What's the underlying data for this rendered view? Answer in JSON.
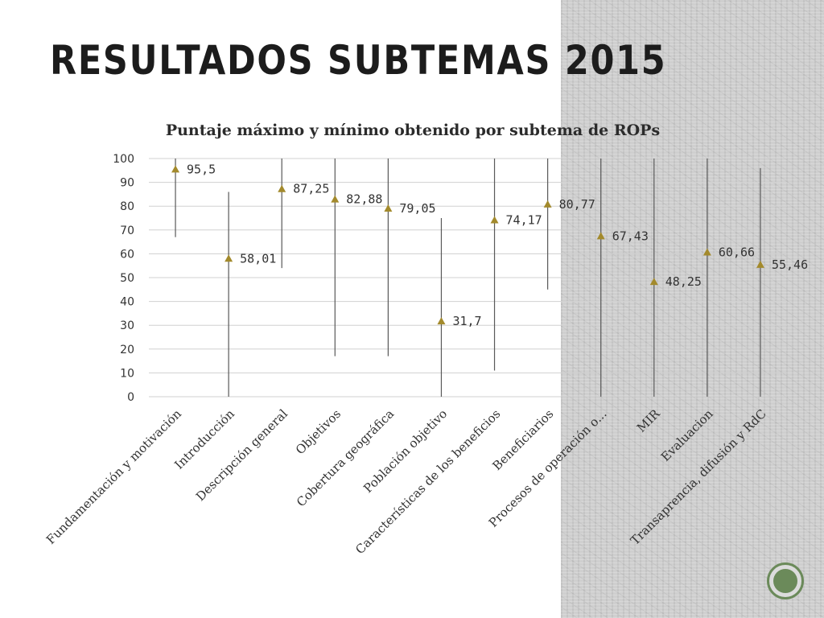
{
  "slide": {
    "title": "RESULTADOS SUBTEMAS 2015"
  },
  "colors": {
    "marker": "#a38a2c",
    "grid": "#d0d0d0",
    "line": "#595959",
    "nav_accent": "#6b8a5a"
  },
  "chart_data": {
    "type": "high-low with markers",
    "title": "Puntaje máximo y mínimo obtenido por subtema de ROPs",
    "ylim": [
      0,
      100
    ],
    "yticks": [
      0,
      10,
      20,
      30,
      40,
      50,
      60,
      70,
      80,
      90,
      100
    ],
    "grid": true,
    "categories": [
      "Fundamentación y motivación",
      "Introducción",
      "Descripción general",
      "Objetivos",
      "Cobertura geográfica",
      "Población objetivo",
      "Características de los beneficios",
      "Beneficiarios",
      "Procesos de operación o...",
      "MIR",
      "Evaluacion",
      "Transaprencia, difusión y RdC"
    ],
    "max": [
      100,
      86,
      100,
      100,
      100,
      75,
      100,
      100,
      100,
      100,
      100,
      96
    ],
    "min": [
      67,
      0,
      54,
      17,
      17,
      0,
      11,
      45,
      0,
      0,
      0,
      0
    ],
    "average": [
      95.5,
      58.01,
      87.25,
      82.88,
      79.05,
      31.7,
      74.17,
      80.77,
      67.43,
      48.25,
      60.66,
      55.46
    ],
    "data_labels": [
      "95,5",
      "58,01",
      "87,25",
      "82,88",
      "79,05",
      "31,7",
      "74,17",
      "80,77",
      "67,43",
      "48,25",
      "60,66",
      "55,46"
    ],
    "marker": "triangle"
  }
}
